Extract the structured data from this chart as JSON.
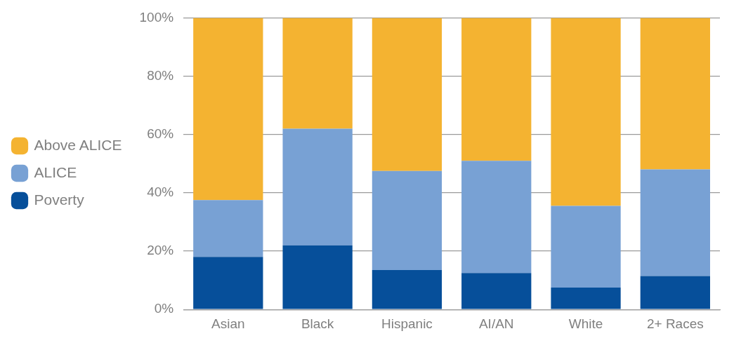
{
  "chart_data": {
    "type": "bar",
    "stacked": true,
    "categories": [
      "Asian",
      "Black",
      "Hispanic",
      "AI/AN",
      "White",
      "2+ Races"
    ],
    "series": [
      {
        "name": "Poverty",
        "color": "#064f9a",
        "values": [
          18,
          22,
          13.5,
          12.5,
          7.5,
          11.5
        ]
      },
      {
        "name": "ALICE",
        "color": "#78a1d4",
        "values": [
          19.5,
          40,
          34,
          38.5,
          28,
          36.5
        ]
      },
      {
        "name": "Above ALICE",
        "color": "#f4b331",
        "values": [
          62.5,
          38,
          52.5,
          49,
          64.5,
          52
        ]
      }
    ],
    "ylim": [
      0,
      100
    ],
    "yticks": [
      {
        "value": 0,
        "label": "0%"
      },
      {
        "value": 20,
        "label": "20%"
      },
      {
        "value": 40,
        "label": "40%"
      },
      {
        "value": 60,
        "label": "60%"
      },
      {
        "value": 80,
        "label": "80%"
      },
      {
        "value": 100,
        "label": "100%"
      }
    ],
    "grid": "y",
    "legend": "left"
  }
}
